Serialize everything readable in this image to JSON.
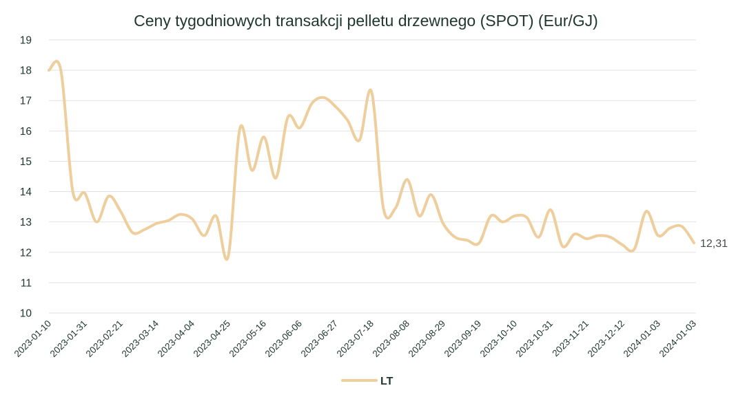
{
  "chart_data": {
    "type": "line",
    "title": "Ceny tygodniowych transakcji pelletu drzewnego (SPOT) (Eur/GJ)",
    "xlabel": "",
    "ylabel": "",
    "ylim": [
      10,
      19
    ],
    "y_ticks": [
      10,
      11,
      12,
      13,
      14,
      15,
      16,
      17,
      18,
      19
    ],
    "grid": true,
    "x_tick_every": 3,
    "x_tick_labels": [
      "2023-01-10",
      "2023-01-31",
      "2023-02-21",
      "2023-03-14",
      "2023-04-04",
      "2023-04-25",
      "2023-05-16",
      "2023-06-06",
      "2023-06-27",
      "2023-07-18",
      "2023-08-08",
      "2023-08-29",
      "2023-09-19",
      "2023-10-10",
      "2023-10-31",
      "2023-11-21",
      "2023-12-12",
      "2024-01-03",
      "2024-01-03"
    ],
    "series": [
      {
        "name": "LT",
        "color": "#EDCE9C",
        "values": [
          18.0,
          18.0,
          14.0,
          13.95,
          13.0,
          13.85,
          13.35,
          12.65,
          12.75,
          12.95,
          13.05,
          13.25,
          13.1,
          12.55,
          13.2,
          11.85,
          16.1,
          14.7,
          15.8,
          14.45,
          16.45,
          16.1,
          16.9,
          17.1,
          16.8,
          16.35,
          15.7,
          17.3,
          13.45,
          13.45,
          14.4,
          13.2,
          13.9,
          12.95,
          12.5,
          12.4,
          12.3,
          13.2,
          13.0,
          13.2,
          13.15,
          12.5,
          13.4,
          12.2,
          12.6,
          12.45,
          12.55,
          12.5,
          12.25,
          12.1,
          13.35,
          12.55,
          12.8,
          12.85,
          12.31
        ]
      }
    ],
    "end_label": "12,31",
    "legend": {
      "label": "LT",
      "position": "bottom-center"
    },
    "colors": {
      "line": "#EDCE9C",
      "grid": "#E2E2E2",
      "title_text": "#20372F",
      "axis_text": "#20372F",
      "legend_text": "#20372F",
      "end_label_text": "#4A4A4A",
      "background": "#FFFFFF"
    }
  }
}
